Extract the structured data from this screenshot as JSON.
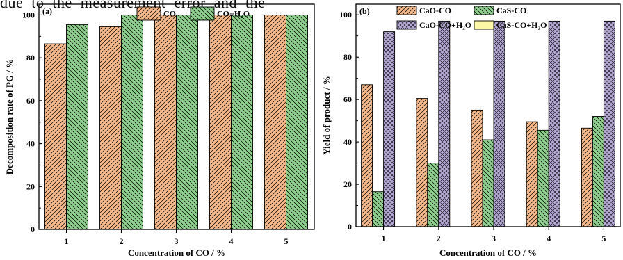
{
  "header_text": "due to the measurement error and the",
  "chart_data": [
    {
      "type": "bar",
      "panel": "(a)",
      "categories": [
        "1",
        "2",
        "3",
        "4",
        "5"
      ],
      "series": [
        {
          "name": "CO",
          "values": [
            86.5,
            94.5,
            100,
            100,
            100
          ],
          "color": "#f6b98b",
          "pattern": "diag-right"
        },
        {
          "name": "CO+H₂O",
          "values": [
            95.5,
            100,
            100,
            100,
            100
          ],
          "color": "#8fd08f",
          "pattern": "diag-left"
        }
      ],
      "title": "",
      "xlabel": "Concentration of CO / %",
      "ylabel": "Decomposition rate of PG / %",
      "ylim": [
        0,
        105
      ],
      "yticks": [
        0,
        20,
        40,
        60,
        80,
        100
      ],
      "legend_position": "top"
    },
    {
      "type": "bar",
      "panel": "(b)",
      "categories": [
        "1",
        "2",
        "3",
        "4",
        "5"
      ],
      "series": [
        {
          "name": "CaO-CO",
          "values": [
            67,
            60.5,
            55,
            49.5,
            46.5
          ],
          "color": "#f6b98b",
          "pattern": "diag-right"
        },
        {
          "name": "CaS-CO",
          "values": [
            16.5,
            30,
            41,
            45.5,
            52
          ],
          "color": "#8fd08f",
          "pattern": "diag-left"
        },
        {
          "name": "CaO-CO+H₂O",
          "values": [
            92,
            97,
            97,
            97,
            97
          ],
          "color": "#b5a9d6",
          "pattern": "cross"
        },
        {
          "name": "CaS-CO+H₂O",
          "values": [
            0,
            0,
            0,
            0,
            0
          ],
          "color": "#fbf7a4",
          "pattern": "none"
        }
      ],
      "title": "",
      "xlabel": "Concentration of CO / %",
      "ylabel": "Yield of product / %",
      "ylim": [
        0,
        105
      ],
      "yticks": [
        0,
        20,
        40,
        60,
        80,
        100
      ],
      "legend_position": "top"
    }
  ]
}
